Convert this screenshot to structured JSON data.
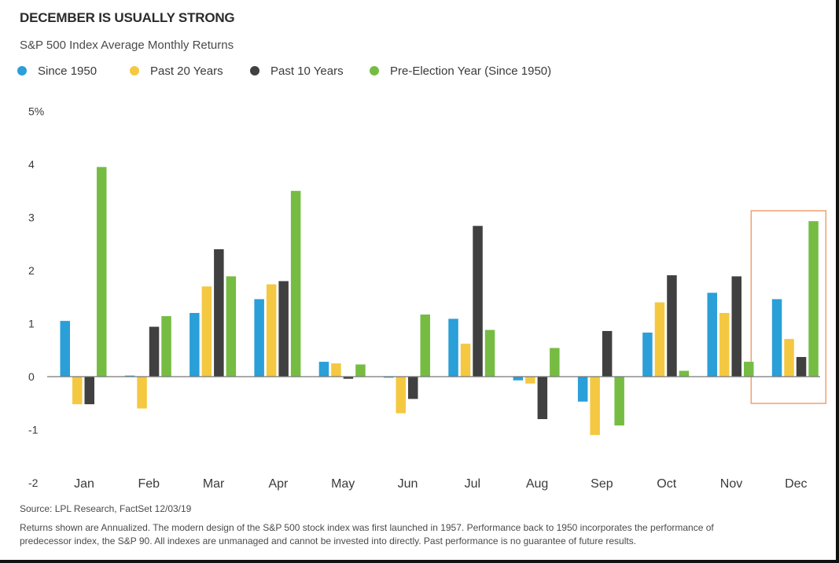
{
  "title": "DECEMBER IS USUALLY STRONG",
  "subtitle": "S&P 500 Index Average Monthly Returns",
  "source": "Source: LPL Research, FactSet  12/03/19",
  "note": "Returns shown are Annualized. The modern design of the S&P 500 stock index was first launched in 1957. Performance back to 1950 incorporates the performance of predecessor index, the S&P 90. All indexes are unmanaged and cannot be invested into directly. Past performance is no guarantee of future results.",
  "highlight_category": "Dec",
  "highlight_color": "#f0a070",
  "chart_data": {
    "type": "bar",
    "title": "DECEMBER IS USUALLY STRONG",
    "subtitle": "S&P 500 Index Average Monthly Returns",
    "xlabel": "",
    "ylabel": "",
    "ylim": [
      -2,
      5
    ],
    "yticks": [
      -2,
      -1,
      0,
      1,
      2,
      3,
      4,
      5
    ],
    "ytick_labels": [
      "-2",
      "-1",
      "0",
      "1",
      "2",
      "3",
      "4",
      "5%"
    ],
    "grid": false,
    "legend_position": "top-left",
    "categories": [
      "Jan",
      "Feb",
      "Mar",
      "Apr",
      "May",
      "Jun",
      "Jul",
      "Aug",
      "Sep",
      "Oct",
      "Nov",
      "Dec"
    ],
    "series": [
      {
        "name": "Since 1950",
        "color": "#2a9fd8",
        "values": [
          1.05,
          0.02,
          1.2,
          1.46,
          0.28,
          -0.02,
          1.09,
          -0.07,
          -0.47,
          0.83,
          1.58,
          1.46
        ]
      },
      {
        "name": "Past 20 Years",
        "color": "#f5c842",
        "values": [
          -0.52,
          -0.6,
          1.7,
          1.74,
          0.25,
          -0.69,
          0.62,
          -0.13,
          -1.1,
          1.4,
          1.2,
          0.71
        ]
      },
      {
        "name": "Past 10 Years",
        "color": "#404040",
        "values": [
          -0.52,
          0.94,
          2.4,
          1.8,
          -0.04,
          -0.42,
          2.84,
          -0.8,
          0.86,
          1.91,
          1.89,
          0.37
        ]
      },
      {
        "name": "Pre-Election Year (Since 1950)",
        "color": "#76bc43",
        "values": [
          3.95,
          1.14,
          1.89,
          3.5,
          0.23,
          1.17,
          0.88,
          0.54,
          -0.92,
          0.11,
          0.28,
          2.93
        ]
      }
    ]
  }
}
